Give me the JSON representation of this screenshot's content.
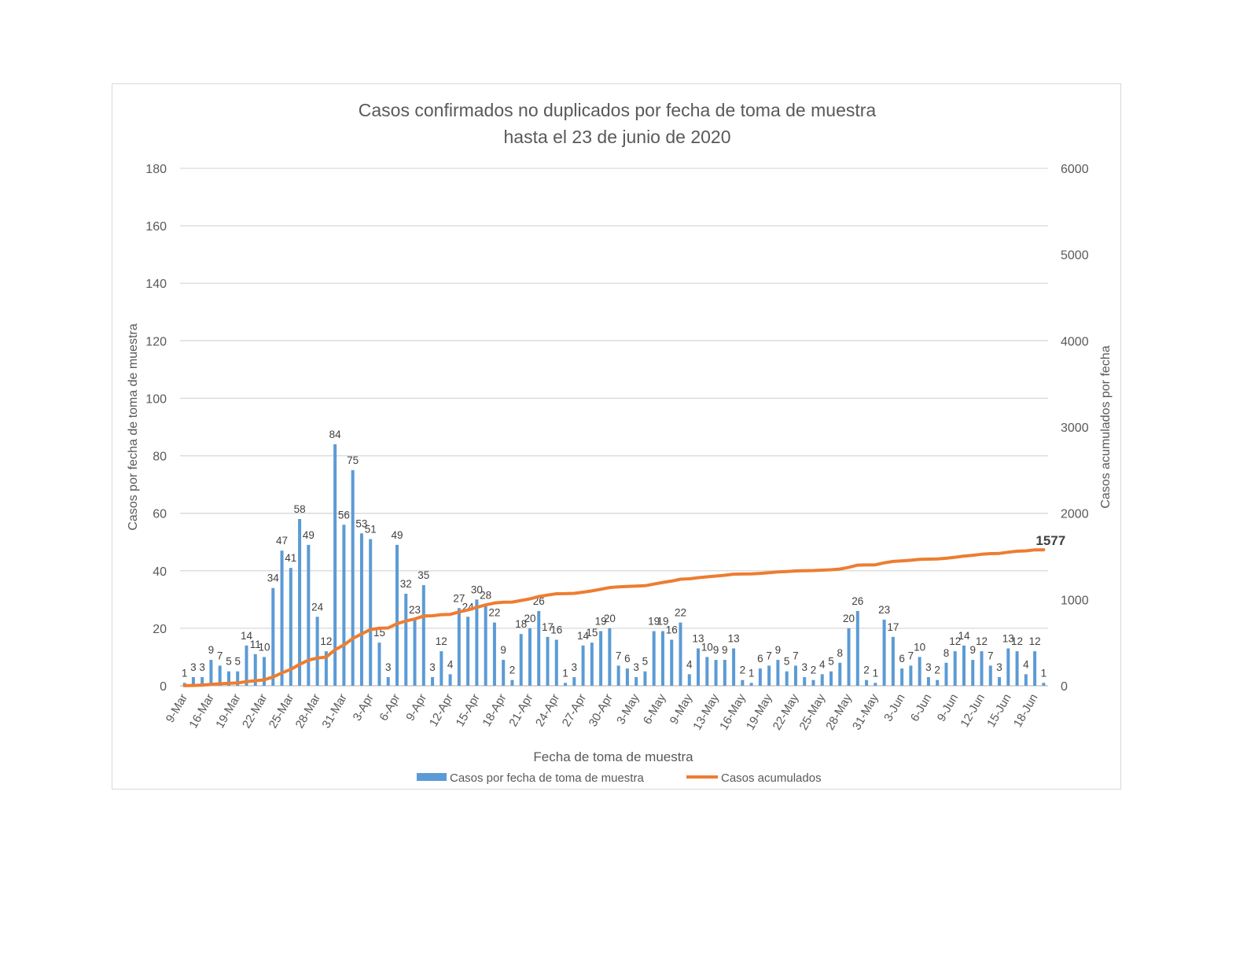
{
  "chart_data": {
    "type": "bar",
    "title": "Casos confirmados no duplicados por fecha de toma de muestra",
    "subtitle": "hasta el 23 de junio de 2020",
    "xlabel": "Fecha de toma de muestra",
    "ylabel": "Casos por fecha de toma de muestra",
    "y2label": "Casos acumulados por fecha",
    "ylim": [
      0,
      180
    ],
    "y2lim": [
      0,
      6000
    ],
    "yticks": [
      0,
      20,
      40,
      60,
      80,
      100,
      120,
      140,
      160,
      180
    ],
    "y2ticks": [
      0,
      1000,
      2000,
      3000,
      4000,
      5000,
      6000
    ],
    "grid": true,
    "legend_position": "bottom",
    "x_tick_labels": [
      "9-Mar",
      "16-Mar",
      "19-Mar",
      "22-Mar",
      "25-Mar",
      "28-Mar",
      "31-Mar",
      "3-Apr",
      "6-Apr",
      "9-Apr",
      "12-Apr",
      "15-Apr",
      "18-Apr",
      "21-Apr",
      "24-Apr",
      "27-Apr",
      "30-Apr",
      "3-May",
      "6-May",
      "9-May",
      "13-May",
      "16-May",
      "19-May",
      "22-May",
      "25-May",
      "28-May",
      "31-May",
      "3-Jun",
      "6-Jun",
      "9-Jun",
      "12-Jun",
      "15-Jun",
      "18-Jun"
    ],
    "x_tick_every": 3,
    "series": [
      {
        "name": "Casos por fecha de toma de muestra",
        "type": "bar",
        "axis": "left",
        "color": "#5b9bd5",
        "values": [
          1,
          3,
          3,
          9,
          7,
          5,
          5,
          14,
          11,
          10,
          34,
          47,
          41,
          58,
          49,
          24,
          12,
          84,
          56,
          75,
          53,
          51,
          15,
          3,
          49,
          32,
          23,
          35,
          3,
          12,
          4,
          27,
          24,
          30,
          28,
          22,
          9,
          2,
          18,
          20,
          26,
          17,
          16,
          1,
          3,
          14,
          15,
          19,
          20,
          7,
          6,
          3,
          5,
          19,
          19,
          16,
          22,
          4,
          13,
          10,
          9,
          9,
          13,
          2,
          1,
          6,
          7,
          9,
          5,
          7,
          3,
          2,
          4,
          5,
          8,
          20,
          26,
          2,
          1,
          23,
          17,
          6,
          7,
          10,
          3,
          2,
          8,
          12,
          14,
          9,
          12,
          7,
          3,
          13,
          12,
          4,
          12,
          1
        ]
      },
      {
        "name": "Casos acumulados",
        "type": "line",
        "axis": "right",
        "color": "#ed7d31",
        "derived": "cumulative sum of daily cases",
        "final_value": 1577
      }
    ],
    "annotations": [
      {
        "text": "1577",
        "series": "Casos acumulados",
        "position": "last point"
      }
    ]
  }
}
